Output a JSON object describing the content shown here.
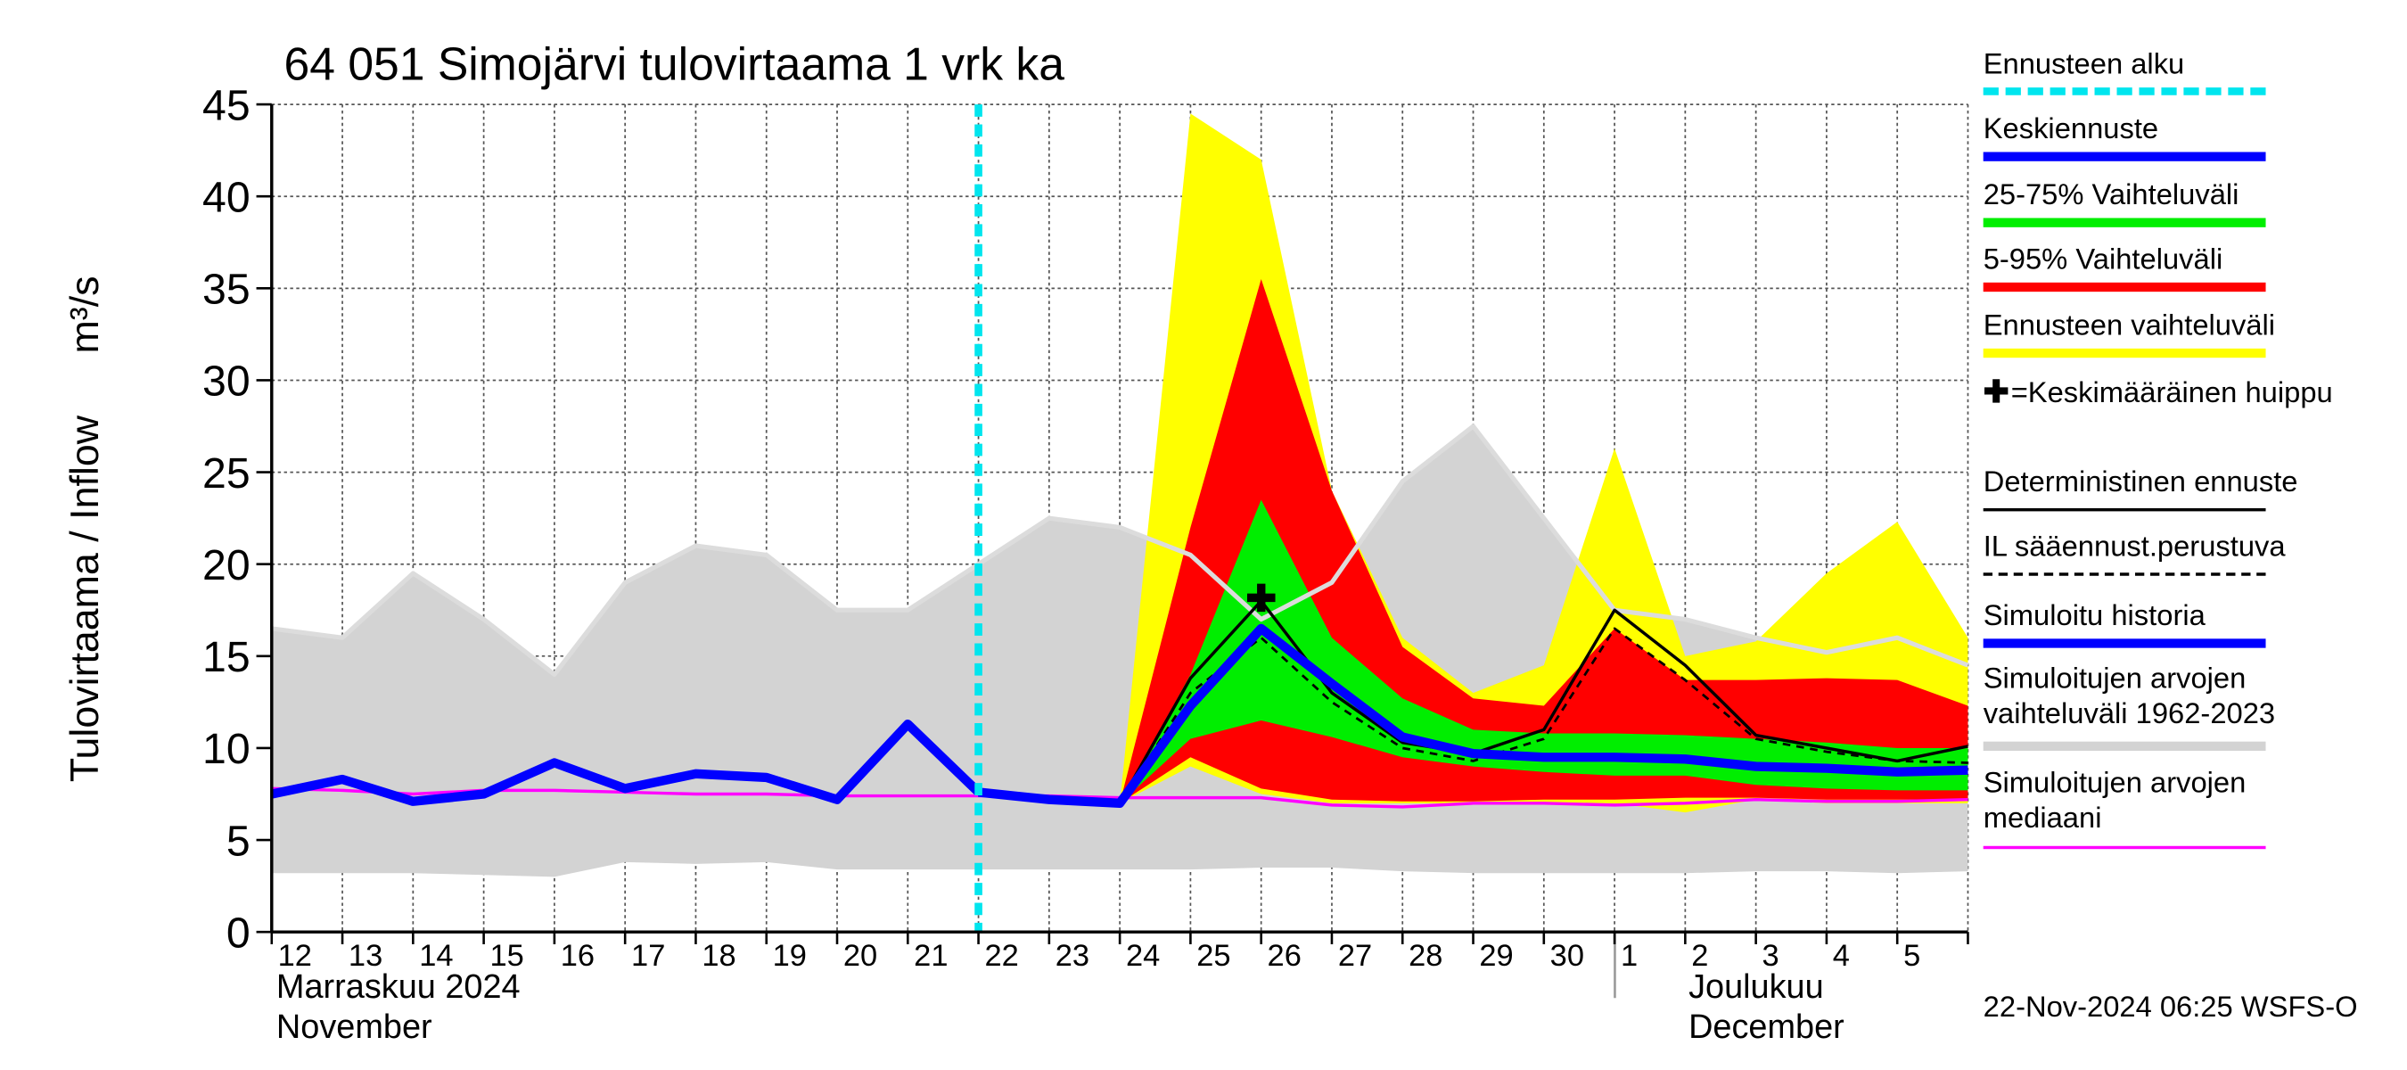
{
  "chart_data": {
    "type": "forecast",
    "title": "64 051 Simojärvi tulovirtaama 1 vrk ka",
    "y_label": "Tulovirtaama / Inflow",
    "y_unit": "m³/s",
    "categories": [
      "12",
      "13",
      "14",
      "15",
      "16",
      "17",
      "18",
      "19",
      "20",
      "21",
      "22",
      "23",
      "24",
      "25",
      "26",
      "27",
      "28",
      "29",
      "30",
      "1",
      "2",
      "3",
      "4",
      "5",
      null
    ],
    "month_labels": [
      "Marraskuu 2024",
      "November",
      "Joulukuu",
      "December"
    ],
    "footer": "22-Nov-2024 06:25 WSFS-O",
    "ylim": [
      0,
      45
    ],
    "yticks": [
      0,
      5,
      10,
      15,
      20,
      25,
      30,
      35,
      40,
      45
    ],
    "grid": true,
    "forecast_start": {
      "name": "Ennusteen alku",
      "color": "#00e5ee",
      "x": 10
    },
    "peak": {
      "name": "=Keskimääräinen huippu",
      "marker": "✚",
      "x": 14,
      "value": 18.2
    },
    "series": [
      {
        "name": "Keskiennuste",
        "color": "#0000ff",
        "style": "thick",
        "values": [
          null,
          null,
          null,
          null,
          null,
          null,
          null,
          null,
          null,
          null,
          7.6,
          7.2,
          7,
          12.3,
          16.5,
          13.5,
          10.6,
          9.7,
          9.5,
          9.5,
          9.4,
          9,
          8.9,
          8.7,
          8.8
        ]
      },
      {
        "name": "25-75% Vaihteluväli",
        "color": "#00ee00",
        "style": "band",
        "values": [
          null,
          null,
          null,
          null,
          null,
          null,
          null,
          null,
          null,
          null,
          null,
          null,
          7,
          14,
          23.5,
          16,
          12.7,
          11,
          10.8,
          10.8,
          10.7,
          10.5,
          10.3,
          10,
          10
        ],
        "lower": [
          null,
          null,
          null,
          null,
          null,
          null,
          null,
          null,
          null,
          null,
          null,
          null,
          7,
          10.5,
          11.5,
          10.6,
          9.5,
          9,
          8.7,
          8.5,
          8.5,
          8,
          7.8,
          7.7,
          7.7
        ]
      },
      {
        "name": "5-95% Vaihteluväli",
        "color": "#ff0000",
        "style": "band",
        "values": [
          null,
          null,
          null,
          null,
          null,
          null,
          null,
          null,
          null,
          null,
          null,
          null,
          7,
          22,
          35.5,
          24,
          15.5,
          12.7,
          12.3,
          16.5,
          13.7,
          13.7,
          13.8,
          13.7,
          12.3
        ],
        "lower": [
          null,
          null,
          null,
          null,
          null,
          null,
          null,
          null,
          null,
          null,
          null,
          null,
          7,
          9.5,
          7.8,
          7.2,
          7.1,
          7.1,
          7.2,
          7.2,
          7.3,
          7.3,
          7.2,
          7.2,
          7.2
        ]
      },
      {
        "name": "Ennusteen vaihteluväli",
        "color": "#ffff00",
        "style": "band",
        "values": [
          null,
          null,
          null,
          null,
          null,
          null,
          null,
          null,
          null,
          null,
          null,
          null,
          7,
          44.5,
          42,
          24,
          16,
          13,
          14.5,
          26.3,
          15,
          15.8,
          19.5,
          22.3,
          16
        ],
        "lower": [
          null,
          null,
          null,
          null,
          null,
          null,
          null,
          null,
          null,
          null,
          null,
          null,
          7,
          9,
          7.5,
          7,
          7,
          7,
          7,
          7,
          6.5,
          7.2,
          7,
          7,
          7
        ]
      },
      {
        "name": "Deterministinen ennuste",
        "color": "#000000",
        "style": "line",
        "values": [
          null,
          null,
          null,
          null,
          null,
          null,
          null,
          null,
          null,
          null,
          7.6,
          7.2,
          7,
          13.8,
          18,
          13,
          10.3,
          9.7,
          11,
          17.5,
          14.5,
          10.7,
          10,
          9.3,
          10.1
        ]
      },
      {
        "name": "IL sääennust.perustuva",
        "color": "#000000",
        "style": "dashed",
        "values": [
          null,
          null,
          null,
          null,
          null,
          null,
          null,
          null,
          null,
          null,
          null,
          null,
          7,
          13,
          16,
          12.5,
          10,
          9.3,
          10.5,
          16.5,
          13.7,
          10.5,
          9.8,
          9.3,
          9.2
        ]
      },
      {
        "name": "Simuloitu historia",
        "color": "#0000ff",
        "style": "thick",
        "values": [
          7.5,
          8.3,
          7.1,
          7.5,
          9.2,
          7.8,
          8.6,
          8.4,
          7.2,
          11.3,
          7.6,
          null,
          null,
          null,
          null,
          null,
          null,
          null,
          null,
          null,
          null,
          null,
          null,
          null,
          null
        ]
      },
      {
        "name": "Simuloitujen arvojen vaihteluväli 1962-2023",
        "color": "#d3d3d3",
        "style": "band",
        "values": [
          16.5,
          16,
          19.5,
          17,
          14,
          19,
          21,
          20.5,
          17.5,
          17.5,
          20,
          22.5,
          22,
          20.5,
          17,
          19,
          24.5,
          27.5,
          22.5,
          17.5,
          17,
          16,
          15.2,
          16,
          14.5
        ],
        "lower": [
          3.2,
          3.2,
          3.2,
          3.1,
          3,
          3.8,
          3.7,
          3.8,
          3.4,
          3.4,
          3.4,
          3.4,
          3.4,
          3.4,
          3.5,
          3.5,
          3.3,
          3.2,
          3.2,
          3.2,
          3.2,
          3.3,
          3.3,
          3.2,
          3.3
        ]
      },
      {
        "name": "Simuloitujen arvojen mediaani",
        "color": "#ff00ff",
        "style": "line",
        "values": [
          7.8,
          7.7,
          7.5,
          7.7,
          7.7,
          7.6,
          7.5,
          7.5,
          7.4,
          7.4,
          7.4,
          7.4,
          7.3,
          7.3,
          7.3,
          6.9,
          6.8,
          7,
          7,
          6.9,
          7,
          7.2,
          7.1,
          7.1,
          7.2
        ]
      }
    ]
  }
}
